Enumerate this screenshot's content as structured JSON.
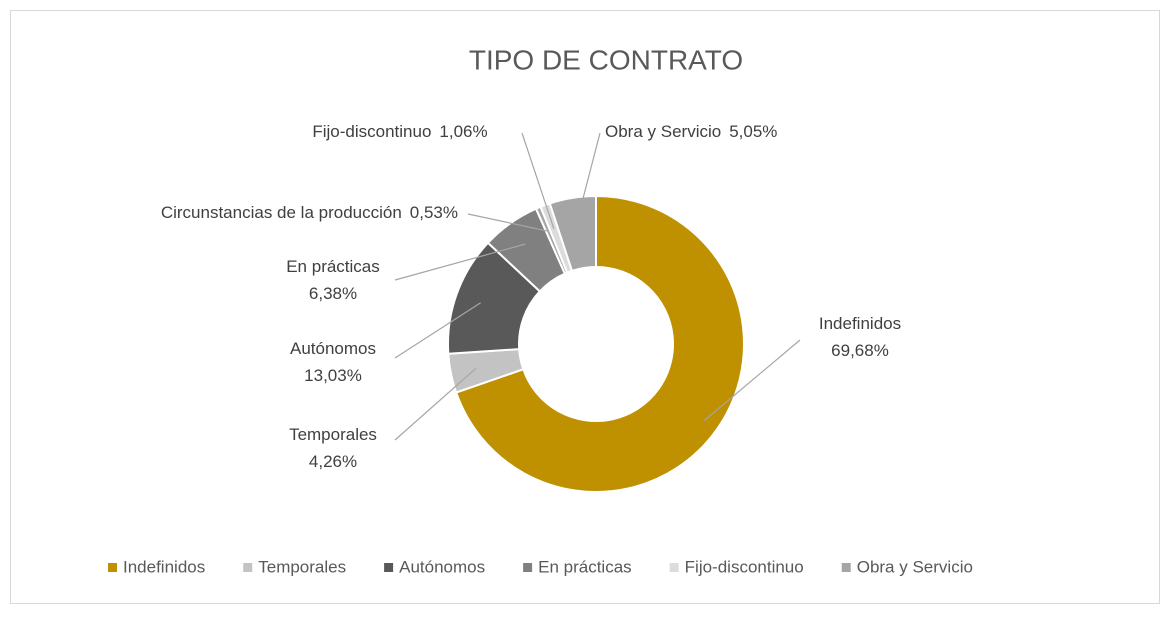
{
  "chart_data": {
    "type": "donut",
    "title": "TIPO DE CONTRATO",
    "categories": [
      "Indefinidos",
      "Temporales",
      "Autónomos",
      "En prácticas",
      "Circunstancias de la producción",
      "Fijo-discontinuo",
      "Obra y Servicio"
    ],
    "values": [
      69.68,
      4.26,
      13.03,
      6.38,
      0.53,
      1.06,
      5.05
    ],
    "value_labels": [
      "69,68%",
      "4,26%",
      "13,03%",
      "6,38%",
      "0,53%",
      "1,06%",
      "5,05%"
    ],
    "colors": [
      "#bf9000",
      "#c3c3c3",
      "#595959",
      "#808080",
      "#a6a6a6",
      "#dcdcdc",
      "#a5a5a5"
    ],
    "legend": {
      "position": "bottom",
      "entries": [
        "Indefinidos",
        "Temporales",
        "Autónomos",
        "En prácticas",
        "Fijo-discontinuo",
        "Obra y Servicio"
      ]
    }
  }
}
